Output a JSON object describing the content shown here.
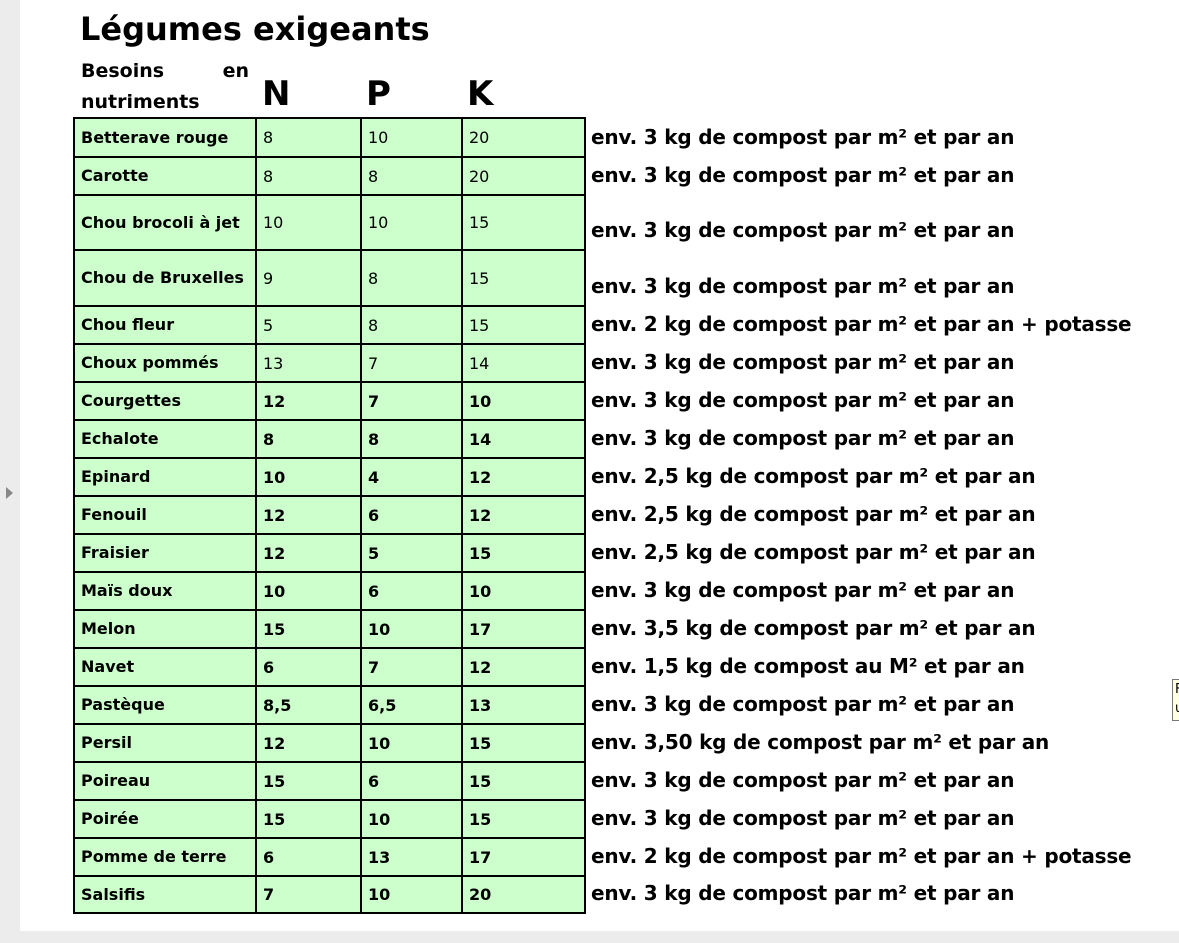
{
  "title": "Légumes exigeants",
  "subtitle": {
    "word1": "Besoins",
    "word2": "en",
    "word3": "nutriments"
  },
  "headers": {
    "n": "N",
    "p": "P",
    "k": "K"
  },
  "rows": [
    {
      "name": "Betterave rouge",
      "n": "8",
      "p": "10",
      "k": "20",
      "note": "env. 3 kg de compost par m² et par an",
      "bold": false
    },
    {
      "name": "Carotte",
      "n": "8",
      "p": "8",
      "k": "20",
      "note": "env. 3 kg de compost par m² et par an",
      "bold": false
    },
    {
      "name": "Chou brocoli à jet",
      "n": "10",
      "p": "10",
      "k": "15",
      "note": "env. 3 kg de compost par m² et par an",
      "bold": false
    },
    {
      "name": "Chou de Bruxelles",
      "n": "9",
      "p": "8",
      "k": "15",
      "note": "env. 3 kg de compost par m² et par an",
      "bold": false
    },
    {
      "name": "Chou fleur",
      "n": "5",
      "p": "8",
      "k": "15",
      "note": "env. 2 kg de compost par m² et par an + potasse",
      "bold": false
    },
    {
      "name": "Choux pommés",
      "n": "13",
      "p": "7",
      "k": "14",
      "note": "env. 3 kg de compost par m² et par an",
      "bold": false
    },
    {
      "name": "Courgettes",
      "n": "12",
      "p": "7",
      "k": "10",
      "note": "env. 3 kg de compost par m² et par an",
      "bold": true
    },
    {
      "name": "Echalote",
      "n": "8",
      "p": "8",
      "k": "14",
      "note": "env. 3 kg de compost par m² et par an",
      "bold": true
    },
    {
      "name": "Epinard",
      "n": "10",
      "p": "4",
      "k": "12",
      "note": "env. 2,5 kg de compost par m² et par an",
      "bold": true
    },
    {
      "name": "Fenouil",
      "n": "12",
      "p": "6",
      "k": "12",
      "note": "env. 2,5 kg de compost par m² et par an",
      "bold": true
    },
    {
      "name": "Fraisier",
      "n": "12",
      "p": "5",
      "k": "15",
      "note": "env. 2,5 kg de compost par m² et par an",
      "bold": true
    },
    {
      "name": "Maïs doux",
      "n": "10",
      "p": "6",
      "k": "10",
      "note": "env. 3 kg de compost par m² et par an",
      "bold": true
    },
    {
      "name": "Melon",
      "n": "15",
      "p": "10",
      "k": "17",
      "note": "env. 3,5 kg de compost par m² et par an",
      "bold": true
    },
    {
      "name": "Navet",
      "n": "6",
      "p": "7",
      "k": "12",
      "note": "env. 1,5  kg de compost au M² et par an",
      "bold": true
    },
    {
      "name": "Pastèque",
      "n": "8,5",
      "p": "6,5",
      "k": "13",
      "note": "env. 3 kg de compost par m² et par an",
      "bold": true
    },
    {
      "name": "Persil",
      "n": "12",
      "p": "10",
      "k": "15",
      "note": "env. 3,50 kg de compost par m² et par an",
      "bold": true
    },
    {
      "name": "Poireau",
      "n": "15",
      "p": "6",
      "k": "15",
      "note": "env. 3 kg de compost par m² et par an",
      "bold": true
    },
    {
      "name": "Poirée",
      "n": "15",
      "p": "10",
      "k": "15",
      "note": "env. 3 kg de compost par m² et par an",
      "bold": true
    },
    {
      "name": "Pomme de terre",
      "n": "6",
      "p": "13",
      "k": "17",
      "note": "env. 2 kg de compost par m² et par an + potasse",
      "bold": true
    },
    {
      "name": "Salsifis",
      "n": "7",
      "p": "10",
      "k": "20",
      "note": "env. 3 kg de compost par m² et par an",
      "bold": true
    }
  ],
  "tooltip": {
    "line1": "F",
    "line2": "u"
  },
  "colors": {
    "cell_bg": "#ccffcc",
    "border": "#000000"
  }
}
